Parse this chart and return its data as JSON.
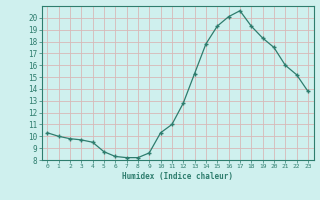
{
  "x": [
    0,
    1,
    2,
    3,
    4,
    5,
    6,
    7,
    8,
    9,
    10,
    11,
    12,
    13,
    14,
    15,
    16,
    17,
    18,
    19,
    20,
    21,
    22,
    23
  ],
  "y": [
    10.3,
    10.0,
    9.8,
    9.7,
    9.5,
    8.7,
    8.3,
    8.2,
    8.2,
    8.6,
    10.3,
    11.0,
    12.8,
    15.3,
    17.8,
    19.3,
    20.1,
    20.6,
    19.3,
    18.3,
    17.5,
    16.0,
    15.2,
    13.8
  ],
  "line_color": "#2e7d6e",
  "bg_color": "#cff0ee",
  "grid_color": "#d8b8b8",
  "xlabel": "Humidex (Indice chaleur)",
  "ylim": [
    8,
    21
  ],
  "xlim": [
    -0.5,
    23.5
  ],
  "yticks": [
    8,
    9,
    10,
    11,
    12,
    13,
    14,
    15,
    16,
    17,
    18,
    19,
    20
  ],
  "xticks": [
    0,
    1,
    2,
    3,
    4,
    5,
    6,
    7,
    8,
    9,
    10,
    11,
    12,
    13,
    14,
    15,
    16,
    17,
    18,
    19,
    20,
    21,
    22,
    23
  ]
}
